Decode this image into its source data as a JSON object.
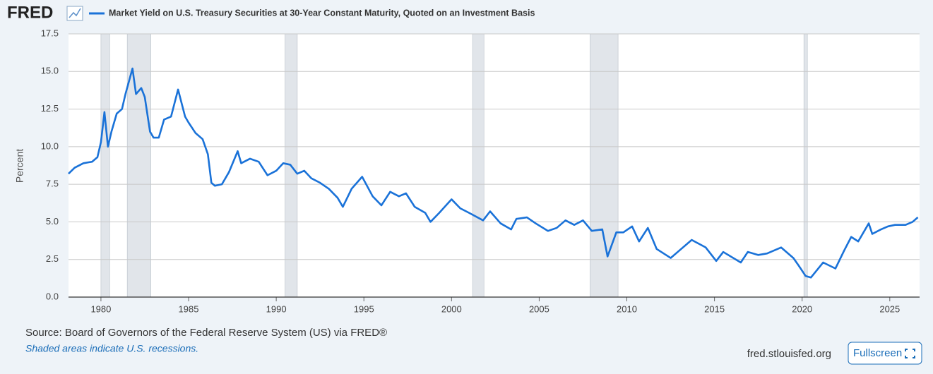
{
  "chart_data": {
    "type": "line",
    "logo": "FRED",
    "series": [
      {
        "name": "Market Yield on U.S. Treasury Securities at 30-Year Constant Maturity, Quoted on an Investment Basis",
        "color": "#1a72d8",
        "values": [
          8.2,
          8.6,
          8.9,
          9.0,
          9.3,
          10.3,
          12.3,
          10.0,
          11.0,
          12.2,
          12.5,
          13.5,
          15.2,
          13.5,
          13.9,
          13.3,
          11.0,
          10.6,
          10.6,
          11.8,
          12.0,
          13.8,
          12.0,
          11.6,
          10.9,
          10.5,
          9.5,
          7.6,
          7.4,
          7.5,
          8.3,
          9.7,
          8.9,
          9.2,
          9.0,
          8.1,
          8.4,
          8.9,
          8.8,
          8.2,
          8.4,
          7.9,
          7.6,
          7.2,
          6.6,
          6.0,
          7.2,
          8.0,
          6.7,
          6.1,
          7.0,
          6.7,
          6.9,
          6.0,
          5.6,
          5.0,
          5.6,
          6.5,
          5.9,
          5.6,
          5.1,
          5.7,
          4.9,
          4.5,
          5.2,
          5.3,
          4.9,
          4.4,
          4.6,
          5.1,
          4.8,
          5.1,
          4.4,
          4.5,
          2.7,
          4.3,
          4.3,
          4.7,
          3.7,
          4.6,
          3.2,
          2.6,
          3.1,
          3.8,
          3.3,
          2.4,
          3.0,
          2.3,
          3.0,
          2.8,
          2.9,
          3.3,
          2.6,
          2.1,
          1.4,
          1.3,
          2.3,
          1.9,
          3.1,
          4.0,
          3.7,
          4.9,
          4.2,
          4.5,
          4.7,
          4.8,
          4.8,
          5.0,
          5.3
        ]
      }
    ],
    "x": [
      1978.15,
      1978.5,
      1979.0,
      1979.5,
      1979.8,
      1980.0,
      1980.2,
      1980.4,
      1980.6,
      1980.9,
      1981.2,
      1981.4,
      1981.8,
      1982.0,
      1982.3,
      1982.5,
      1982.8,
      1983.0,
      1983.3,
      1983.6,
      1984.0,
      1984.4,
      1984.8,
      1985.0,
      1985.4,
      1985.8,
      1986.1,
      1986.3,
      1986.5,
      1986.9,
      1987.3,
      1987.8,
      1988.0,
      1988.5,
      1989.0,
      1989.5,
      1990.0,
      1990.4,
      1990.8,
      1991.2,
      1991.6,
      1992.0,
      1992.5,
      1993.0,
      1993.5,
      1993.8,
      1994.3,
      1994.9,
      1995.5,
      1996.0,
      1996.5,
      1997.0,
      1997.4,
      1997.9,
      1998.5,
      1998.8,
      1999.3,
      2000.0,
      2000.5,
      2001.0,
      2001.8,
      2002.2,
      2002.8,
      2003.4,
      2003.7,
      2004.3,
      2004.8,
      2005.5,
      2006.0,
      2006.5,
      2007.0,
      2007.5,
      2008.0,
      2008.6,
      2008.9,
      2009.4,
      2009.8,
      2010.3,
      2010.7,
      2011.2,
      2011.7,
      2012.5,
      2013.0,
      2013.7,
      2014.5,
      2015.1,
      2015.5,
      2016.5,
      2016.9,
      2017.5,
      2018.0,
      2018.8,
      2019.5,
      2019.8,
      2020.2,
      2020.5,
      2021.2,
      2021.9,
      2022.4,
      2022.8,
      2023.2,
      2023.8,
      2024.0,
      2024.5,
      2024.9,
      2025.3,
      2025.9,
      2026.3,
      2026.6
    ],
    "recessions": [
      [
        1980.0,
        1980.5
      ],
      [
        1981.5,
        1982.85
      ],
      [
        1990.5,
        1991.2
      ],
      [
        2001.2,
        2001.85
      ],
      [
        2007.9,
        2009.5
      ],
      [
        2020.1,
        2020.3
      ]
    ],
    "ylabel": "Percent",
    "xlim": [
      1978.15,
      2026.7
    ],
    "ylim": [
      0,
      17.5
    ],
    "xticks": [
      1980,
      1985,
      1990,
      1995,
      2000,
      2005,
      2010,
      2015,
      2020,
      2025
    ],
    "yticks": [
      {
        "value": 0,
        "label": "0.0"
      },
      2.5,
      {
        "value": 5,
        "label": "5.0"
      },
      7.5,
      {
        "value": 10,
        "label": "10.0"
      },
      12.5,
      {
        "value": 15,
        "label": "15.0"
      },
      17.5
    ],
    "grid": true,
    "source": "Source: Board of Governors of the Federal Reserve System (US) via FRED®",
    "note": "Shaded areas indicate U.S. recessions.",
    "site": "fred.stlouisfed.org",
    "button": "Fullscreen"
  }
}
